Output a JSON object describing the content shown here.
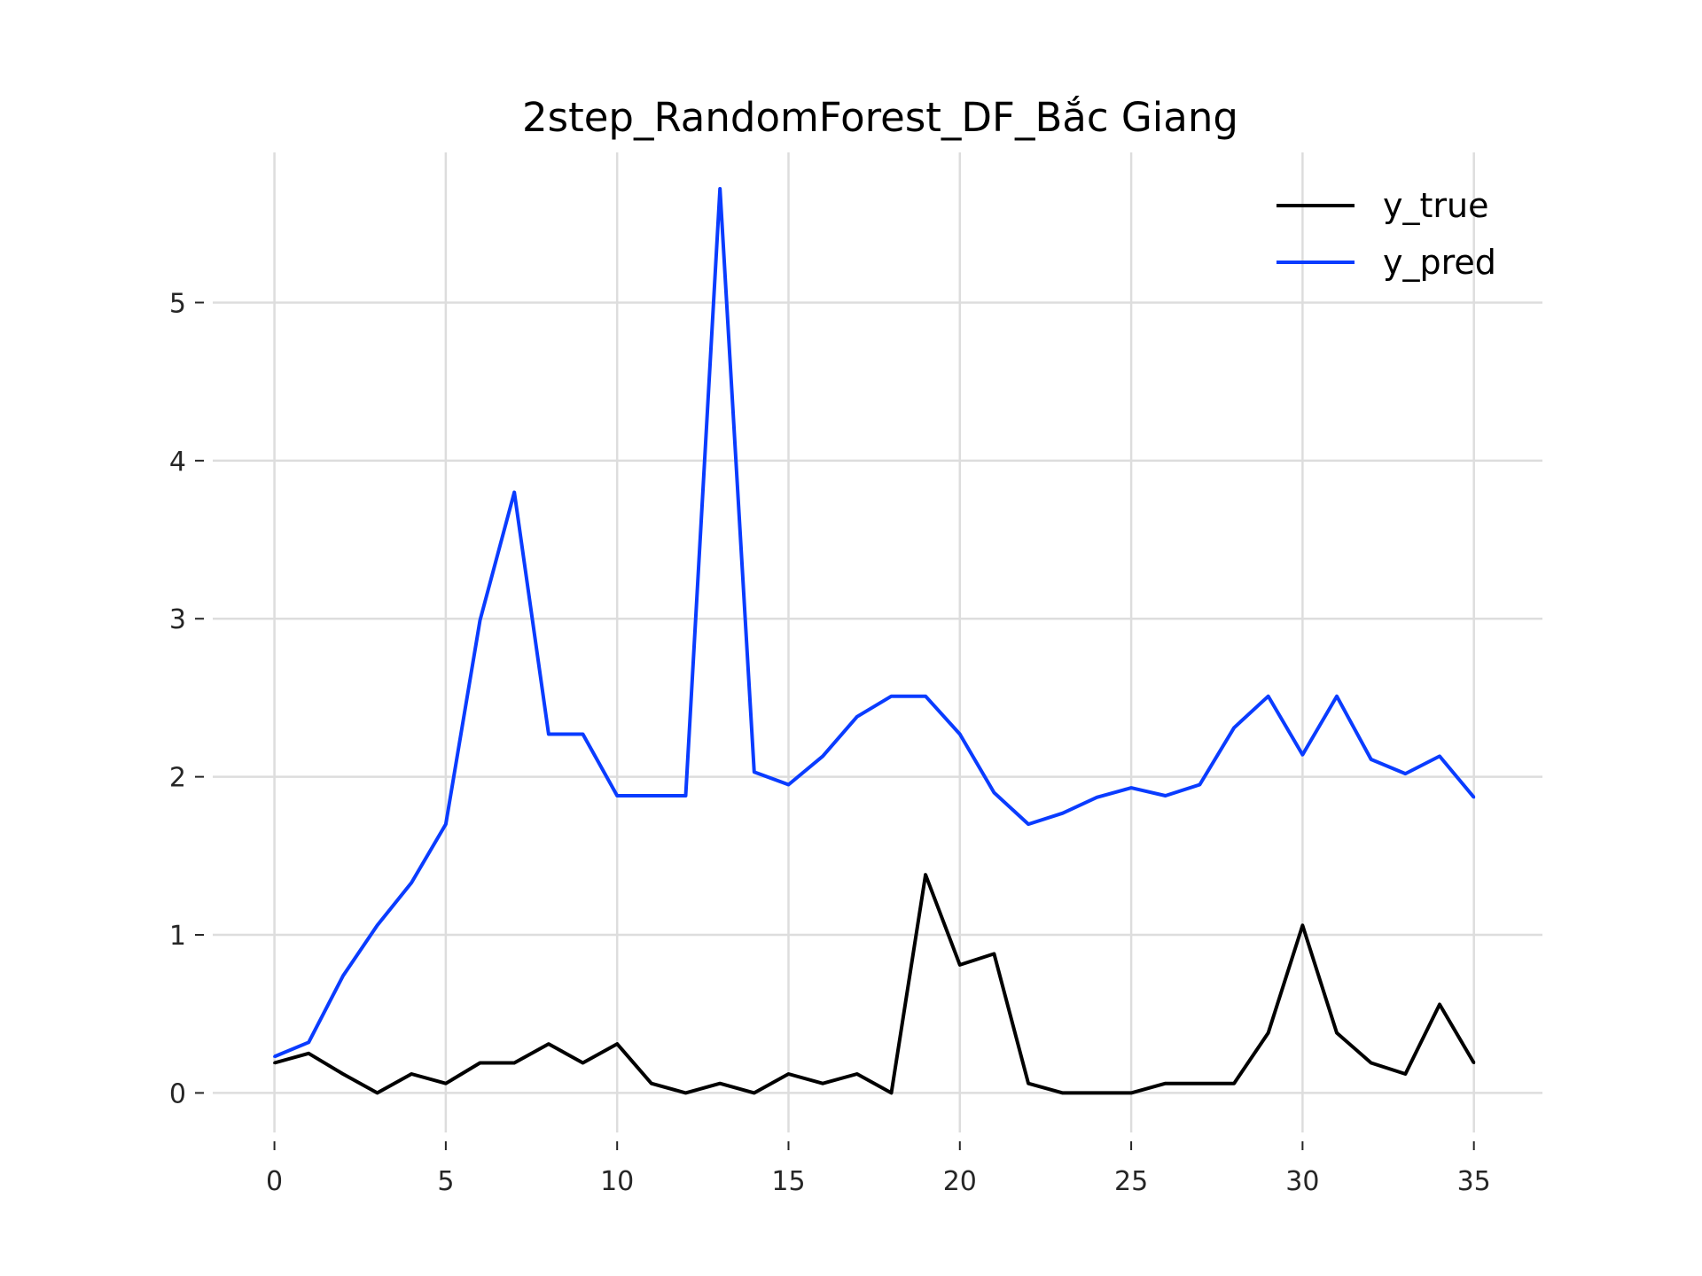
{
  "chart_data": {
    "type": "line",
    "title": "2step_RandomForest_DF_Bắc Giang",
    "xlabel": "",
    "ylabel": "",
    "xlim": [
      -1.8,
      37
    ],
    "ylim": [
      -0.25,
      5.95
    ],
    "x_ticks": [
      0,
      5,
      10,
      15,
      20,
      25,
      30,
      35
    ],
    "x_tick_labels": [
      "0",
      "5",
      "10",
      "15",
      "20",
      "25",
      "30",
      "35"
    ],
    "y_ticks": [
      0,
      1,
      2,
      3,
      4,
      5
    ],
    "y_tick_labels": [
      "0",
      "1",
      "2",
      "3",
      "4",
      "5"
    ],
    "grid": true,
    "legend_position": "top-right",
    "x": [
      0,
      1,
      2,
      3,
      4,
      5,
      6,
      7,
      8,
      9,
      10,
      11,
      12,
      13,
      14,
      15,
      16,
      17,
      18,
      19,
      20,
      21,
      22,
      23,
      24,
      25,
      26,
      27,
      28,
      29,
      30,
      31,
      32,
      33,
      34,
      35
    ],
    "series": [
      {
        "name": "y_true",
        "color": "#000000",
        "values": [
          0.19,
          0.25,
          0.12,
          0.0,
          0.12,
          0.06,
          0.19,
          0.19,
          0.31,
          0.19,
          0.31,
          0.06,
          0.0,
          0.06,
          0.0,
          0.12,
          0.06,
          0.12,
          0.0,
          1.38,
          0.81,
          0.88,
          0.06,
          0.0,
          0.0,
          0.0,
          0.06,
          0.06,
          0.06,
          0.38,
          1.06,
          0.38,
          0.19,
          0.12,
          0.56,
          0.19
        ]
      },
      {
        "name": "y_pred",
        "color": "#0a3cff",
        "values": [
          0.23,
          0.32,
          0.74,
          1.06,
          1.33,
          1.7,
          2.99,
          3.8,
          2.27,
          2.27,
          1.88,
          1.88,
          1.88,
          5.72,
          2.03,
          1.95,
          2.13,
          2.38,
          2.51,
          2.51,
          2.27,
          1.9,
          1.7,
          1.77,
          1.87,
          1.93,
          1.88,
          1.95,
          2.31,
          2.51,
          2.14,
          2.51,
          2.11,
          2.02,
          2.13,
          1.87
        ]
      }
    ]
  }
}
